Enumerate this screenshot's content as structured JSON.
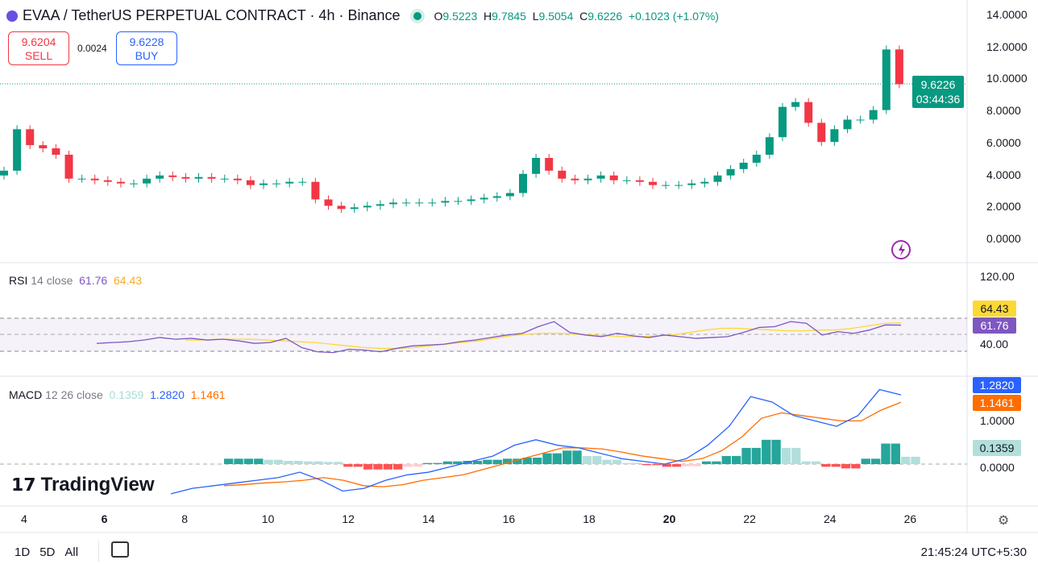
{
  "header": {
    "symbol": "EVAA / TetherUS PERPETUAL CONTRACT · 4h · Binance",
    "open_label": "O",
    "open": "9.5223",
    "high_label": "H",
    "high": "9.7845",
    "low_label": "L",
    "low": "9.5054",
    "close_label": "C",
    "close": "9.6226",
    "change": "+0.1023 (+1.07%)"
  },
  "trade": {
    "sell_price": "9.6204",
    "sell_label": "SELL",
    "spread": "0.0024",
    "buy_price": "9.6228",
    "buy_label": "BUY"
  },
  "price_axis": [
    "14.0000",
    "12.0000",
    "10.0000",
    "8.0000",
    "6.0000",
    "4.0000",
    "2.0000",
    "0.0000"
  ],
  "last_price": "9.6226",
  "countdown": "03:44:36",
  "rsi": {
    "label": "RSI",
    "params": "14 close",
    "value": "61.76",
    "ma": "64.43",
    "axis": [
      "120.00",
      "40.00"
    ]
  },
  "macd": {
    "label": "MACD",
    "params": "12 26 close",
    "hist": "0.1359",
    "macd": "1.2820",
    "signal": "1.1461",
    "axis": [
      "1.0000",
      "0.0000"
    ]
  },
  "time_axis": [
    "4",
    "6",
    "8",
    "10",
    "12",
    "14",
    "16",
    "18",
    "20",
    "22",
    "24",
    "26"
  ],
  "ranges": [
    "1D",
    "5D",
    "All"
  ],
  "clock": "21:45:24 UTC+5:30",
  "brand": "TradingView",
  "colors": {
    "up": "#089981",
    "down": "#f23645",
    "rsi": "#7e57c2",
    "rsi_ma": "#fdd835",
    "macd": "#2962ff",
    "signal": "#ff6d00"
  },
  "chart_data": {
    "type": "candlestick",
    "interval": "4h",
    "ylim": [
      0,
      14
    ],
    "closes": [
      4.2,
      6.8,
      5.8,
      5.6,
      5.2,
      3.7,
      3.7,
      3.6,
      3.5,
      3.4,
      3.4,
      3.7,
      3.9,
      3.8,
      3.7,
      3.8,
      3.7,
      3.7,
      3.6,
      3.3,
      3.4,
      3.4,
      3.5,
      3.5,
      2.4,
      2.0,
      1.8,
      1.9,
      2.0,
      2.1,
      2.2,
      2.2,
      2.2,
      2.2,
      2.3,
      2.3,
      2.4,
      2.5,
      2.6,
      2.8,
      4.0,
      5.0,
      4.2,
      3.7,
      3.6,
      3.7,
      3.9,
      3.6,
      3.6,
      3.5,
      3.3,
      3.3,
      3.3,
      3.4,
      3.5,
      3.9,
      4.3,
      4.7,
      5.2,
      6.3,
      8.2,
      8.5,
      7.2,
      6.0,
      6.8,
      7.4,
      7.4,
      8.0,
      11.8,
      9.62
    ],
    "rsi_values": [
      40,
      41,
      42,
      44,
      47,
      45,
      46,
      44,
      45,
      43,
      40,
      41,
      46,
      35,
      30,
      29,
      33,
      32,
      30,
      34,
      37,
      38,
      39,
      42,
      44,
      47,
      50,
      52,
      60,
      66,
      53,
      50,
      48,
      52,
      49,
      47,
      50,
      48,
      46,
      47,
      48,
      53,
      59,
      60,
      66,
      64,
      50,
      54,
      52,
      56,
      62,
      61.76
    ],
    "rsi_ma": [
      44,
      44,
      45,
      45,
      45,
      44,
      43,
      42,
      41,
      39,
      37,
      35,
      34,
      34,
      35,
      37,
      39,
      41,
      43,
      46,
      49,
      51,
      52,
      52,
      51,
      50,
      49,
      48,
      48,
      49,
      50,
      53,
      56,
      58,
      58,
      57,
      56,
      55,
      55,
      56,
      56,
      58,
      61,
      64,
      64.43
    ],
    "macd_values": [
      -0.55,
      -0.45,
      -0.4,
      -0.35,
      -0.3,
      -0.25,
      -0.15,
      -0.3,
      -0.5,
      -0.45,
      -0.3,
      -0.2,
      -0.15,
      -0.05,
      0.05,
      0.15,
      0.35,
      0.45,
      0.35,
      0.3,
      0.2,
      0.1,
      0.05,
      0.0,
      0.1,
      0.35,
      0.7,
      1.25,
      1.15,
      0.9,
      0.8,
      0.7,
      0.9,
      1.38,
      1.282
    ],
    "signal_values": [
      -0.4,
      -0.38,
      -0.35,
      -0.33,
      -0.3,
      -0.25,
      -0.3,
      -0.4,
      -0.42,
      -0.38,
      -0.3,
      -0.25,
      -0.2,
      -0.1,
      0.0,
      0.1,
      0.2,
      0.3,
      0.3,
      0.28,
      0.22,
      0.15,
      0.1,
      0.05,
      0.1,
      0.25,
      0.5,
      0.85,
      0.95,
      0.9,
      0.85,
      0.8,
      0.8,
      1.0,
      1.1461
    ],
    "hist_values": [
      0.1,
      0.1,
      0.08,
      0.06,
      0.05,
      0.04,
      -0.05,
      -0.1,
      -0.1,
      -0.05,
      0.02,
      0.05,
      0.06,
      0.08,
      0.1,
      0.12,
      0.2,
      0.25,
      0.15,
      0.08,
      0.02,
      -0.02,
      -0.05,
      -0.04,
      0.05,
      0.15,
      0.3,
      0.45,
      0.3,
      0.05,
      -0.05,
      -0.08,
      0.1,
      0.38,
      0.1359
    ]
  }
}
